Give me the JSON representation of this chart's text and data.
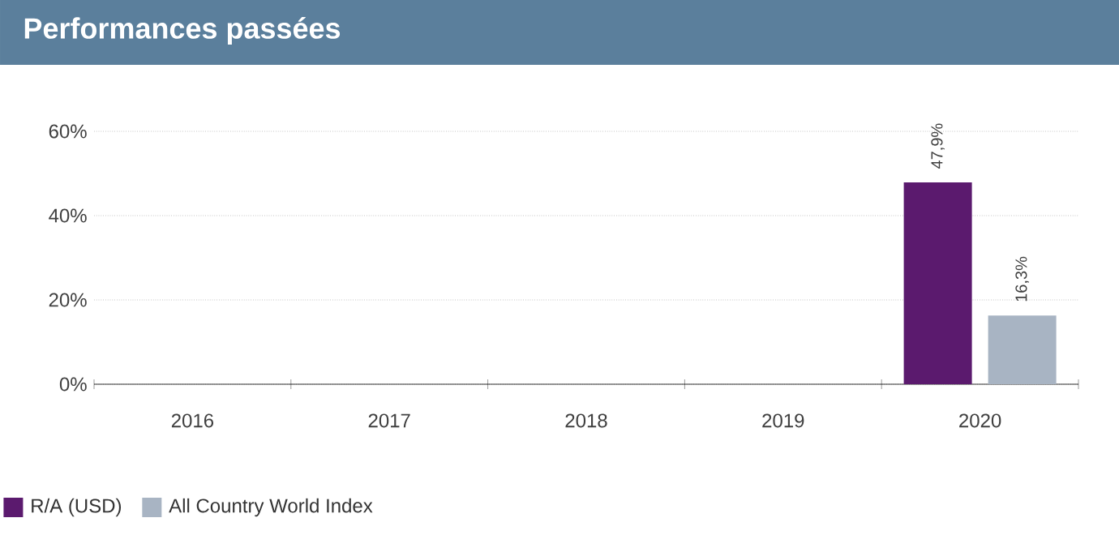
{
  "chart_data": {
    "type": "bar",
    "title": "Performances passées",
    "categories": [
      "2016",
      "2017",
      "2018",
      "2019",
      "2020"
    ],
    "series": [
      {
        "name": "R/A (USD)",
        "color": "#5b1a6e",
        "values": [
          null,
          null,
          null,
          null,
          47.9
        ],
        "value_labels": [
          null,
          null,
          null,
          null,
          "47,9%"
        ]
      },
      {
        "name": "All Country World Index",
        "color": "#a8b4c3",
        "values": [
          null,
          null,
          null,
          null,
          16.3
        ],
        "value_labels": [
          null,
          null,
          null,
          null,
          "16,3%"
        ]
      }
    ],
    "ylim": [
      0,
      60
    ],
    "yticks": [
      {
        "value": 0,
        "label": "0%"
      },
      {
        "value": 20,
        "label": "20%"
      },
      {
        "value": 40,
        "label": "40%"
      },
      {
        "value": 60,
        "label": "60%"
      }
    ],
    "grid": "y",
    "legend": "bottom"
  }
}
